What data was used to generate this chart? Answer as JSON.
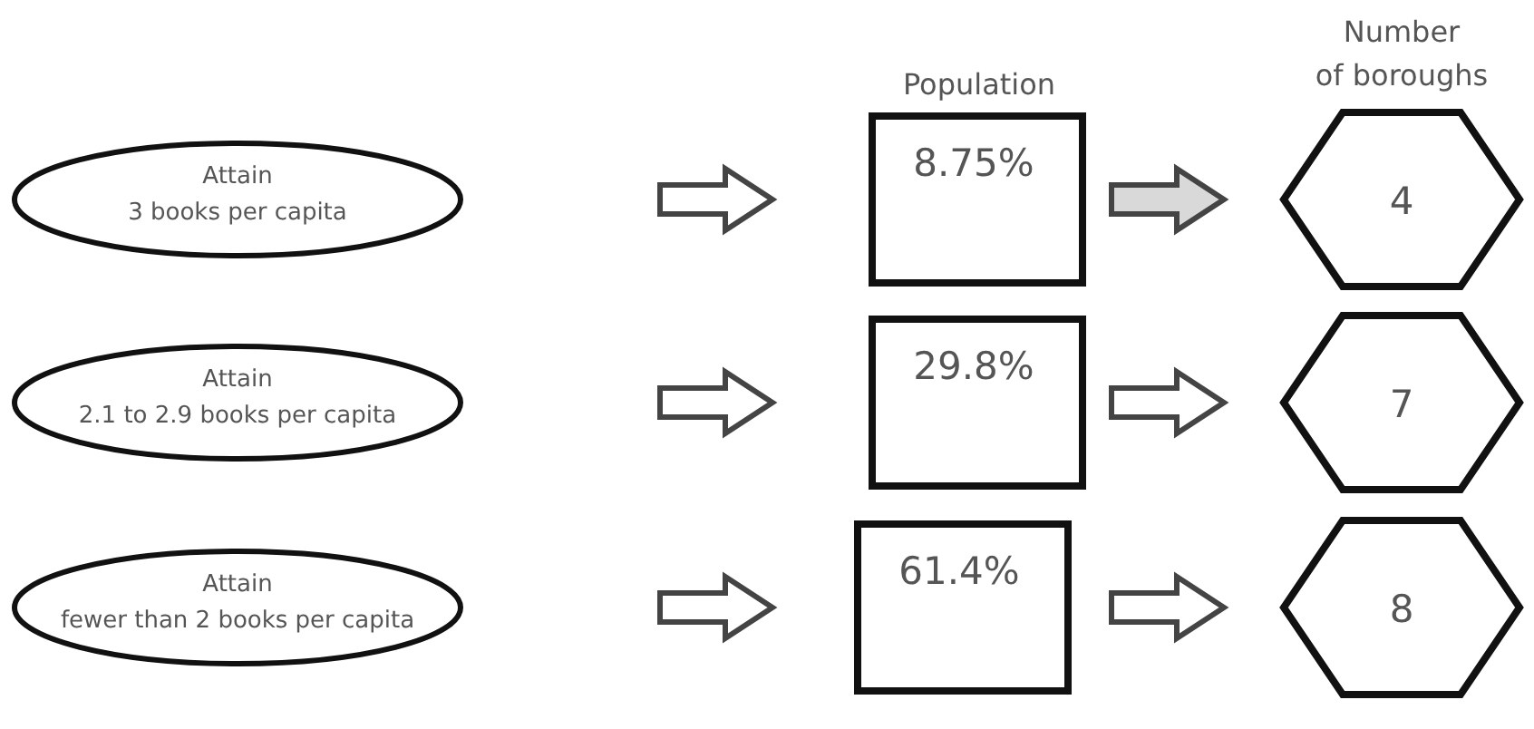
{
  "chart_data": {
    "type": "other",
    "data_labels": true,
    "categories": [
      "Attain\n3 books per capita",
      "Attain\n2.1 to 2.9 books per capita",
      "Attain\nfewer than 2 books per capita"
    ],
    "series": [
      {
        "name": "Population",
        "values": [
          8.75,
          29.8,
          61.4
        ],
        "value_labels": [
          "8.75%",
          "29.8%",
          "61.4%"
        ]
      },
      {
        "name": "Number\nof boroughs",
        "values": [
          4,
          7,
          8
        ]
      }
    ]
  }
}
